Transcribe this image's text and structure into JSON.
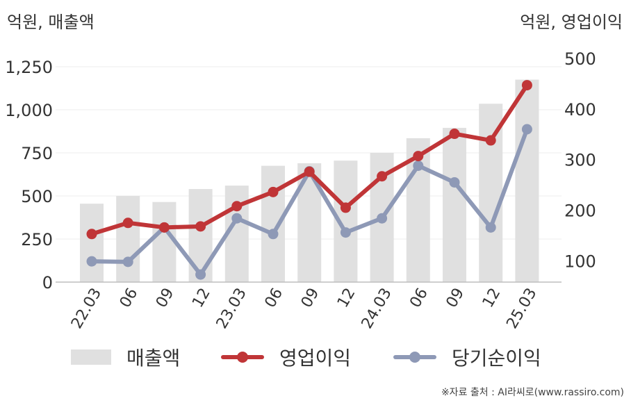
{
  "unit_left": "억원, 매출액",
  "unit_right": "억원, 영업이익",
  "source": "※자료 출처 : AI라씨로(www.rassiro.com)",
  "colors": {
    "bar": "#e0e0e0",
    "operating": "#c03537",
    "net": "#8e99b6",
    "grid": "#ececec",
    "axis": "#bdbdbd"
  },
  "chart_data": {
    "type": "bar",
    "categories": [
      "22.03",
      "06",
      "09",
      "12",
      "23.03",
      "06",
      "09",
      "12",
      "24.03",
      "06",
      "09",
      "12",
      "25.03"
    ],
    "series": [
      {
        "name": "매출액",
        "type": "bar",
        "axis": "left",
        "values": [
          455,
          500,
          465,
          540,
          560,
          675,
          690,
          705,
          750,
          835,
          895,
          1035,
          1175
        ]
      },
      {
        "name": "영업이익",
        "type": "line",
        "axis": "right",
        "values": [
          153,
          175,
          166,
          168,
          208,
          236,
          276,
          205,
          267,
          307,
          351,
          338,
          447
        ]
      },
      {
        "name": "당기순이익",
        "type": "line",
        "axis": "right",
        "values": [
          99,
          98,
          166,
          73,
          184,
          153,
          277,
          156,
          184,
          288,
          255,
          166,
          360
        ]
      }
    ],
    "y_left": {
      "ylim": [
        0,
        1250
      ],
      "ticks": [
        0,
        250,
        500,
        750,
        1000,
        1250
      ],
      "tick_labels": [
        "0",
        "250",
        "500",
        "750",
        "1,000",
        "1,250"
      ]
    },
    "y_right": {
      "ylim": [
        58,
        500
      ],
      "ticks": [
        100,
        200,
        300,
        400,
        500
      ],
      "tick_labels": [
        "100",
        "200",
        "300",
        "400",
        "500"
      ]
    },
    "grid": true,
    "legend_position": "bottom"
  }
}
